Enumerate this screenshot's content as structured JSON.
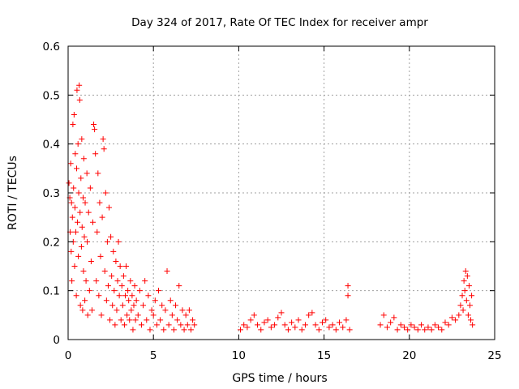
{
  "chart_data": {
    "type": "scatter",
    "title": "Day 324 of 2017, Rate Of TEC Index for receiver ampr",
    "xlabel": "GPS time / hours",
    "ylabel": "ROTI / TECUs",
    "xlim": [
      0,
      25
    ],
    "ylim": [
      0,
      0.6
    ],
    "x_ticks": [
      "0",
      "5",
      "10",
      "15",
      "20",
      "25"
    ],
    "y_ticks": [
      "0",
      "0.1",
      "0.2",
      "0.3",
      "0.4",
      "0.5",
      "0.6"
    ],
    "grid": true,
    "marker": "plus",
    "point_color": "#ff0000",
    "series": [
      {
        "values": [
          [
            0.05,
            0.32
          ],
          [
            0.1,
            0.29
          ],
          [
            0.12,
            0.22
          ],
          [
            0.15,
            0.36
          ],
          [
            0.18,
            0.18
          ],
          [
            0.2,
            0.28
          ],
          [
            0.22,
            0.12
          ],
          [
            0.25,
            0.25
          ],
          [
            0.28,
            0.44
          ],
          [
            0.3,
            0.2
          ],
          [
            0.32,
            0.31
          ],
          [
            0.35,
            0.46
          ],
          [
            0.38,
            0.15
          ],
          [
            0.4,
            0.27
          ],
          [
            0.42,
            0.38
          ],
          [
            0.45,
            0.22
          ],
          [
            0.48,
            0.09
          ],
          [
            0.5,
            0.35
          ],
          [
            0.52,
            0.51
          ],
          [
            0.55,
            0.24
          ],
          [
            0.58,
            0.4
          ],
          [
            0.6,
            0.17
          ],
          [
            0.62,
            0.3
          ],
          [
            0.65,
            0.52
          ],
          [
            0.68,
            0.49
          ],
          [
            0.7,
            0.26
          ],
          [
            0.72,
            0.07
          ],
          [
            0.75,
            0.33
          ],
          [
            0.78,
            0.19
          ],
          [
            0.8,
            0.41
          ],
          [
            0.82,
            0.23
          ],
          [
            0.85,
            0.06
          ],
          [
            0.88,
            0.29
          ],
          [
            0.9,
            0.14
          ],
          [
            0.92,
            0.37
          ],
          [
            0.95,
            0.21
          ],
          [
            0.98,
            0.08
          ],
          [
            1.0,
            0.28
          ],
          [
            1.05,
            0.12
          ],
          [
            1.1,
            0.34
          ],
          [
            1.12,
            0.2
          ],
          [
            1.15,
            0.05
          ],
          [
            1.2,
            0.26
          ],
          [
            1.25,
            0.1
          ],
          [
            1.3,
            0.31
          ],
          [
            1.35,
            0.16
          ],
          [
            1.4,
            0.06
          ],
          [
            1.45,
            0.24
          ],
          [
            1.5,
            0.44
          ],
          [
            1.55,
            0.43
          ],
          [
            1.6,
            0.38
          ],
          [
            1.65,
            0.12
          ],
          [
            1.7,
            0.22
          ],
          [
            1.75,
            0.34
          ],
          [
            1.8,
            0.09
          ],
          [
            1.85,
            0.28
          ],
          [
            1.9,
            0.17
          ],
          [
            1.95,
            0.05
          ],
          [
            2.0,
            0.25
          ],
          [
            2.05,
            0.41
          ],
          [
            2.1,
            0.39
          ],
          [
            2.15,
            0.14
          ],
          [
            2.2,
            0.3
          ],
          [
            2.25,
            0.08
          ],
          [
            2.3,
            0.2
          ],
          [
            2.35,
            0.11
          ],
          [
            2.4,
            0.27
          ],
          [
            2.45,
            0.04
          ],
          [
            2.5,
            0.21
          ],
          [
            2.55,
            0.13
          ],
          [
            2.6,
            0.07
          ],
          [
            2.65,
            0.18
          ],
          [
            2.7,
            0.1
          ],
          [
            2.75,
            0.03
          ],
          [
            2.8,
            0.16
          ],
          [
            2.85,
            0.06
          ],
          [
            2.9,
            0.12
          ],
          [
            2.95,
            0.2
          ],
          [
            3.0,
            0.09
          ],
          [
            3.05,
            0.15
          ],
          [
            3.1,
            0.04
          ],
          [
            3.15,
            0.11
          ],
          [
            3.2,
            0.07
          ],
          [
            3.25,
            0.13
          ],
          [
            3.3,
            0.03
          ],
          [
            3.35,
            0.09
          ],
          [
            3.4,
            0.15
          ],
          [
            3.45,
            0.05
          ],
          [
            3.5,
            0.1
          ],
          [
            3.55,
            0.08
          ],
          [
            3.6,
            0.04
          ],
          [
            3.65,
            0.12
          ],
          [
            3.7,
            0.06
          ],
          [
            3.75,
            0.09
          ],
          [
            3.8,
            0.02
          ],
          [
            3.85,
            0.07
          ],
          [
            3.9,
            0.11
          ],
          [
            3.95,
            0.04
          ],
          [
            4.0,
            0.08
          ],
          [
            4.1,
            0.05
          ],
          [
            4.2,
            0.1
          ],
          [
            4.3,
            0.03
          ],
          [
            4.4,
            0.07
          ],
          [
            4.5,
            0.12
          ],
          [
            4.6,
            0.04
          ],
          [
            4.7,
            0.09
          ],
          [
            4.8,
            0.02
          ],
          [
            4.9,
            0.06
          ],
          [
            5.0,
            0.05
          ],
          [
            5.1,
            0.08
          ],
          [
            5.2,
            0.03
          ],
          [
            5.3,
            0.1
          ],
          [
            5.4,
            0.04
          ],
          [
            5.5,
            0.07
          ],
          [
            5.6,
            0.02
          ],
          [
            5.7,
            0.06
          ],
          [
            5.8,
            0.14
          ],
          [
            5.9,
            0.03
          ],
          [
            6.0,
            0.08
          ],
          [
            6.1,
            0.05
          ],
          [
            6.2,
            0.02
          ],
          [
            6.3,
            0.07
          ],
          [
            6.4,
            0.04
          ],
          [
            6.5,
            0.11
          ],
          [
            6.6,
            0.03
          ],
          [
            6.7,
            0.06
          ],
          [
            6.8,
            0.02
          ],
          [
            6.9,
            0.05
          ],
          [
            7.0,
            0.03
          ],
          [
            7.1,
            0.06
          ],
          [
            7.2,
            0.02
          ],
          [
            7.3,
            0.04
          ],
          [
            7.4,
            0.03
          ],
          [
            10.1,
            0.02
          ],
          [
            10.3,
            0.03
          ],
          [
            10.5,
            0.025
          ],
          [
            10.7,
            0.04
          ],
          [
            10.9,
            0.05
          ],
          [
            11.1,
            0.03
          ],
          [
            11.3,
            0.02
          ],
          [
            11.5,
            0.035
          ],
          [
            11.7,
            0.04
          ],
          [
            11.9,
            0.025
          ],
          [
            12.1,
            0.03
          ],
          [
            12.3,
            0.045
          ],
          [
            12.5,
            0.055
          ],
          [
            12.7,
            0.03
          ],
          [
            12.9,
            0.02
          ],
          [
            13.1,
            0.035
          ],
          [
            13.3,
            0.025
          ],
          [
            13.5,
            0.04
          ],
          [
            13.7,
            0.02
          ],
          [
            13.9,
            0.03
          ],
          [
            14.1,
            0.05
          ],
          [
            14.3,
            0.055
          ],
          [
            14.5,
            0.03
          ],
          [
            14.7,
            0.02
          ],
          [
            14.9,
            0.035
          ],
          [
            15.1,
            0.04
          ],
          [
            15.3,
            0.025
          ],
          [
            15.5,
            0.03
          ],
          [
            15.7,
            0.02
          ],
          [
            15.9,
            0.035
          ],
          [
            16.1,
            0.025
          ],
          [
            16.3,
            0.04
          ],
          [
            16.4,
            0.09
          ],
          [
            16.4,
            0.11
          ],
          [
            16.5,
            0.02
          ],
          [
            18.3,
            0.03
          ],
          [
            18.5,
            0.05
          ],
          [
            18.7,
            0.025
          ],
          [
            18.9,
            0.035
          ],
          [
            19.1,
            0.045
          ],
          [
            19.3,
            0.02
          ],
          [
            19.5,
            0.03
          ],
          [
            19.7,
            0.025
          ],
          [
            19.9,
            0.02
          ],
          [
            20.1,
            0.03
          ],
          [
            20.3,
            0.025
          ],
          [
            20.5,
            0.02
          ],
          [
            20.7,
            0.03
          ],
          [
            20.9,
            0.02
          ],
          [
            21.1,
            0.025
          ],
          [
            21.3,
            0.02
          ],
          [
            21.5,
            0.03
          ],
          [
            21.7,
            0.025
          ],
          [
            21.9,
            0.02
          ],
          [
            22.1,
            0.035
          ],
          [
            22.3,
            0.03
          ],
          [
            22.5,
            0.045
          ],
          [
            22.7,
            0.04
          ],
          [
            22.9,
            0.05
          ],
          [
            23.0,
            0.07
          ],
          [
            23.1,
            0.09
          ],
          [
            23.15,
            0.06
          ],
          [
            23.2,
            0.12
          ],
          [
            23.25,
            0.1
          ],
          [
            23.3,
            0.14
          ],
          [
            23.35,
            0.08
          ],
          [
            23.4,
            0.13
          ],
          [
            23.45,
            0.05
          ],
          [
            23.5,
            0.11
          ],
          [
            23.55,
            0.07
          ],
          [
            23.6,
            0.04
          ],
          [
            23.65,
            0.09
          ],
          [
            23.7,
            0.03
          ]
        ]
      }
    ]
  }
}
